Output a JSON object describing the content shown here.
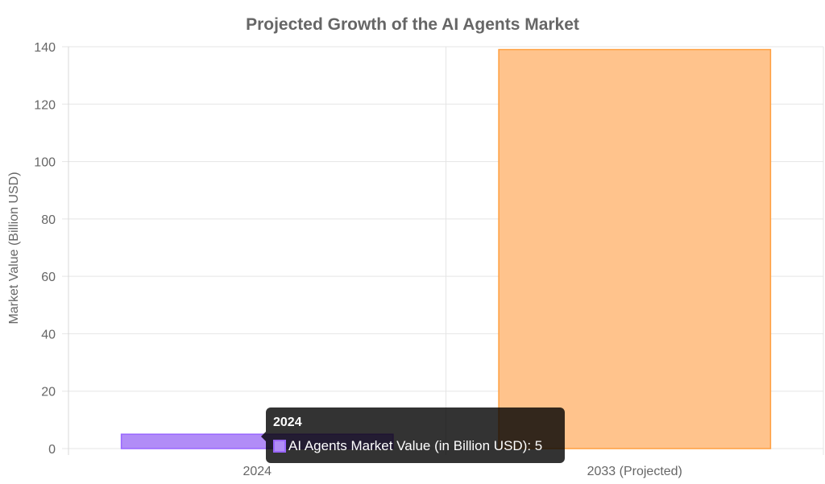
{
  "chart_data": {
    "type": "bar",
    "title": "Projected Growth of the AI Agents Market",
    "categories": [
      "2024",
      "2033 (Projected)"
    ],
    "series": [
      {
        "name": "AI Agents Market Value (in Billion USD)",
        "values": [
          5,
          139
        ],
        "colors": [
          "#b18cf7",
          "#ffc38c"
        ],
        "border_colors": [
          "#9966ff",
          "#ff9f40"
        ]
      }
    ],
    "xlabel": "",
    "ylabel": "Market Value (Billion USD)",
    "ylim": [
      0,
      140
    ],
    "yticks": [
      "0",
      "20",
      "40",
      "60",
      "80",
      "100",
      "120",
      "140"
    ],
    "grid": true,
    "legend": "none"
  },
  "tooltip": {
    "title": "2024",
    "label": "AI Agents Market Value (in Billion USD): 5"
  }
}
